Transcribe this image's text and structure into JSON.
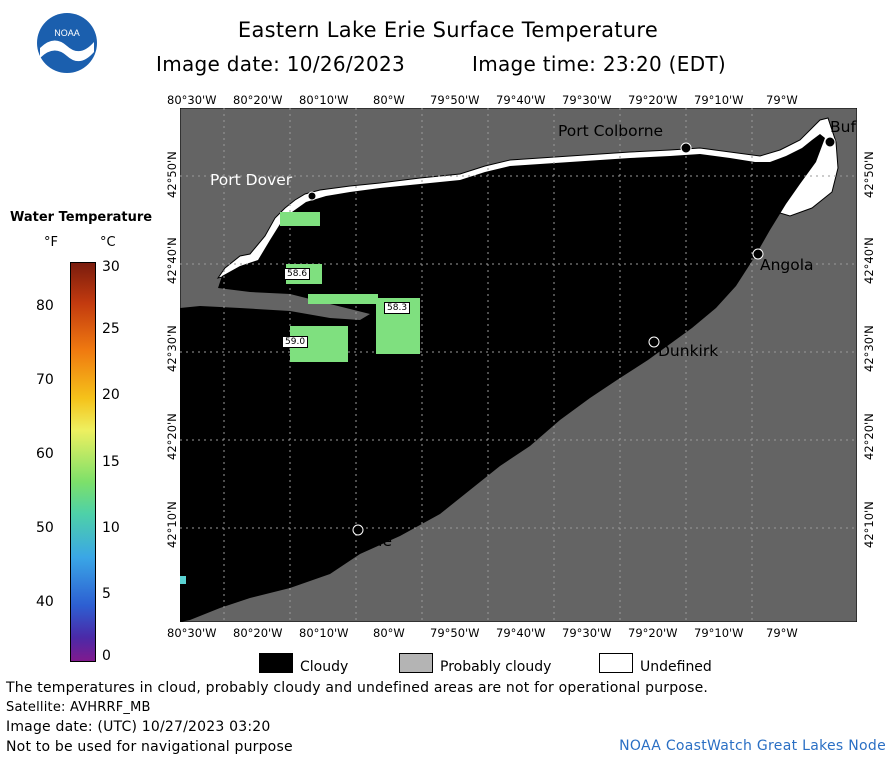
{
  "title": "Eastern Lake Erie Surface Temperature",
  "subtitle": {
    "image_date": "Image date: 10/26/2023",
    "image_time": "Image time: 23:20 (EDT)"
  },
  "logo_text": "NOAA",
  "longitude_labels": [
    "80°30'W",
    "80°20'W",
    "80°10'W",
    "80°W",
    "79°50'W",
    "79°40'W",
    "79°30'W",
    "79°20'W",
    "79°10'W",
    "79°W"
  ],
  "latitude_labels": [
    "42°50'N",
    "42°40'N",
    "42°30'N",
    "42°20'N",
    "42°10'N"
  ],
  "colorbar": {
    "title": "Water Temperature",
    "unit_f": "°F",
    "unit_c": "°C",
    "f_ticks": [
      "80",
      "70",
      "60",
      "50",
      "40"
    ],
    "c_ticks": [
      "30",
      "25",
      "20",
      "15",
      "10",
      "5",
      "0"
    ]
  },
  "places": {
    "port_colborne": "Port Colborne",
    "port_dover": "Port Dover",
    "buffalo": "Buf",
    "angola": "Angola",
    "dunkirk": "Dunkirk",
    "erie": "Erie"
  },
  "temperature_labels": [
    "58.6",
    "58.3",
    "59.0"
  ],
  "legend": {
    "cloudy": "Cloudy",
    "probably_cloudy": "Probably cloudy",
    "undefined": "Undefined",
    "cloudy_color": "#000000",
    "probably_cloudy_color": "#b4b4b4",
    "undefined_color": "#ffffff"
  },
  "colors": {
    "land": "#646464",
    "cloud": "#000000",
    "warm_water": "#7fe07f",
    "credit": "#2a6fc4"
  },
  "notes": {
    "disclaimer": "The temperatures in cloud, probably cloudy and undefined areas are not for operational purpose.",
    "satellite": "Satellite: AVHRRF_MB",
    "utc_date": "Image date: (UTC) 10/27/2023  03:20",
    "navigation": "Not to be used for navigational purpose",
    "credit": "NOAA CoastWatch Great Lakes Node"
  }
}
